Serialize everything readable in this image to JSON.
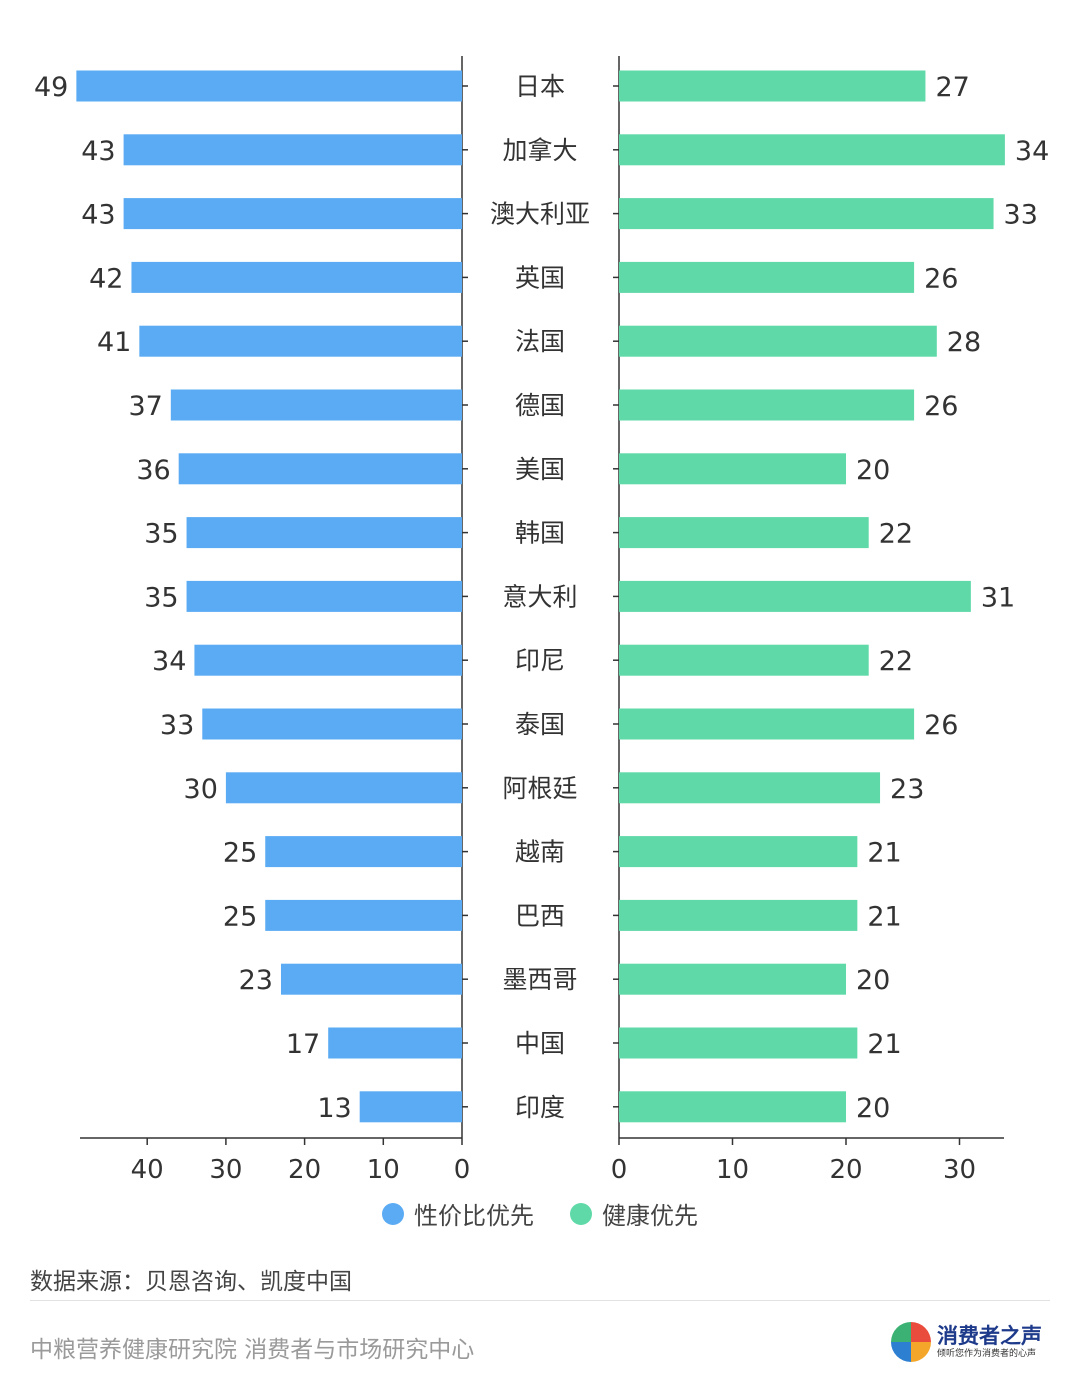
{
  "chart_data": {
    "type": "bar",
    "categories": [
      "日本",
      "加拿大",
      "澳大利亚",
      "英国",
      "法国",
      "德国",
      "美国",
      "韩国",
      "意大利",
      "印尼",
      "泰国",
      "阿根廷",
      "越南",
      "巴西",
      "墨西哥",
      "中国",
      "印度"
    ],
    "series": [
      {
        "name": "性价比优先",
        "values": [
          49,
          43,
          43,
          42,
          41,
          37,
          36,
          35,
          35,
          34,
          33,
          30,
          25,
          25,
          23,
          17,
          13
        ],
        "color": "#5aabf4"
      },
      {
        "name": "健康优先",
        "values": [
          27,
          34,
          33,
          26,
          28,
          26,
          20,
          22,
          31,
          22,
          26,
          23,
          21,
          21,
          20,
          21,
          20
        ],
        "color": "#5fd9a8"
      }
    ],
    "left_axis": {
      "ticks": [
        40,
        30,
        20,
        10,
        0
      ],
      "range": [
        0,
        49
      ]
    },
    "right_axis": {
      "ticks": [
        0,
        10,
        20,
        30
      ],
      "range": [
        0,
        34
      ]
    }
  },
  "legend": {
    "items": [
      {
        "label": "性价比优先",
        "color": "#5aabf4"
      },
      {
        "label": "健康优先",
        "color": "#5fd9a8"
      }
    ]
  },
  "source_text": "数据来源：贝恩咨询、凯度中国",
  "footer_text": "中粮营养健康研究院 消费者与市场研究中心",
  "logo": {
    "name": "消费者之声",
    "tagline": "倾听您作为消费者的心声"
  }
}
